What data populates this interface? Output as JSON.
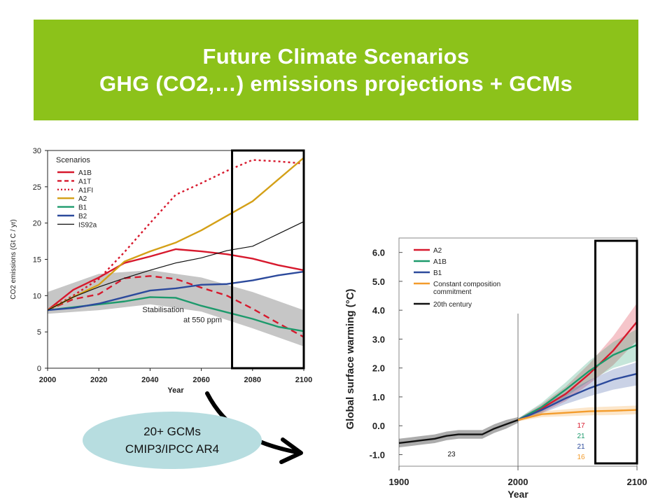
{
  "slide": {
    "title_line1": "Future Climate Scenarios",
    "title_line2": "GHG (CO2,…) emissions projections + GCMs",
    "caption_line1": "20+ GCMs",
    "caption_line2": "CMIP3/IPCC AR4"
  },
  "colors": {
    "banner": "#8cc21a",
    "caption_bg": "#b7dde0",
    "A1B": "#d7192d",
    "A1T": "#d7192d",
    "A1FI": "#d7192d",
    "A2": "#d4a017",
    "B1": "#1d9a6c",
    "B2": "#2c4a9c",
    "IS92a": "#111111",
    "band": "#c6c6c6",
    "const": "#f39c2c",
    "c20": "#111111"
  },
  "chart_data": [
    {
      "type": "line",
      "title": "",
      "ylabel": "CO2 emissions (Gt C / yr)",
      "xlabel": "Year",
      "xlim": [
        2000,
        2100
      ],
      "ylim": [
        0,
        30
      ],
      "xticks": [
        "2000",
        "2020",
        "2040",
        "2060",
        "2080",
        "2100"
      ],
      "yticks": [
        "0",
        "5",
        "10",
        "15",
        "20",
        "25",
        "30"
      ],
      "legend_title": "Scenarios",
      "legend_position": "top-left",
      "band_label_line1": "Stabilisation",
      "band_label_line2": "at 550 ppm",
      "highlight_box": [
        2072,
        2100
      ],
      "band": {
        "x": [
          2000,
          2020,
          2040,
          2060,
          2080,
          2100
        ],
        "lower": [
          7.5,
          8.0,
          8.8,
          7.8,
          5.5,
          3.0
        ],
        "upper": [
          10.5,
          13.0,
          13.5,
          12.5,
          10.5,
          8.0
        ]
      },
      "series": [
        {
          "name": "A1B",
          "style": "solid",
          "x": [
            2000,
            2010,
            2020,
            2030,
            2040,
            2050,
            2060,
            2070,
            2080,
            2090,
            2100
          ],
          "values": [
            8.0,
            10.8,
            12.5,
            14.5,
            15.4,
            16.4,
            16.1,
            15.7,
            15.1,
            14.2,
            13.5
          ]
        },
        {
          "name": "A1T",
          "style": "dashed",
          "x": [
            2000,
            2010,
            2020,
            2030,
            2040,
            2050,
            2060,
            2070,
            2080,
            2090,
            2100
          ],
          "values": [
            8.0,
            9.5,
            10.2,
            12.4,
            12.7,
            12.3,
            11.1,
            10.0,
            8.2,
            6.2,
            4.3
          ]
        },
        {
          "name": "A1FI",
          "style": "dotted",
          "x": [
            2000,
            2010,
            2020,
            2030,
            2040,
            2050,
            2060,
            2070,
            2080,
            2090,
            2100
          ],
          "values": [
            8.0,
            10.0,
            12.3,
            16.0,
            20.0,
            23.9,
            25.5,
            27.2,
            28.7,
            28.5,
            28.2
          ]
        },
        {
          "name": "A2",
          "style": "solid",
          "x": [
            2000,
            2010,
            2020,
            2030,
            2040,
            2050,
            2060,
            2070,
            2080,
            2090,
            2100
          ],
          "values": [
            8.0,
            9.8,
            11.5,
            14.7,
            16.1,
            17.3,
            19.0,
            21.0,
            23.0,
            26.0,
            29.0
          ]
        },
        {
          "name": "B1",
          "style": "solid",
          "x": [
            2000,
            2010,
            2020,
            2030,
            2040,
            2050,
            2060,
            2070,
            2080,
            2090,
            2100
          ],
          "values": [
            8.0,
            8.4,
            8.8,
            9.2,
            9.8,
            9.7,
            8.6,
            7.7,
            6.8,
            5.7,
            5.1
          ]
        },
        {
          "name": "B2",
          "style": "solid",
          "x": [
            2000,
            2010,
            2020,
            2030,
            2040,
            2050,
            2060,
            2070,
            2080,
            2090,
            2100
          ],
          "values": [
            8.0,
            8.3,
            8.9,
            9.8,
            10.7,
            11.0,
            11.5,
            11.6,
            12.1,
            12.8,
            13.3
          ]
        },
        {
          "name": "IS92a",
          "style": "thin",
          "x": [
            2000,
            2010,
            2020,
            2030,
            2040,
            2050,
            2060,
            2070,
            2080,
            2090,
            2100
          ],
          "values": [
            8.0,
            9.8,
            11.2,
            12.4,
            13.5,
            14.5,
            15.2,
            16.2,
            16.8,
            18.5,
            20.2
          ]
        }
      ]
    },
    {
      "type": "line",
      "title": "",
      "ylabel": "Global surface warming (°C)",
      "xlabel": "Year",
      "xlim": [
        1900,
        2100
      ],
      "ylim": [
        -1.0,
        6.0
      ],
      "xticks": [
        "1900",
        "2000",
        "2100"
      ],
      "yticks": [
        "6.0",
        "5.0",
        "4.0",
        "3.0",
        "2.0",
        "1.0",
        "0.0",
        "-1.0"
      ],
      "legend_position": "top-left",
      "highlight_box": [
        2065,
        2100
      ],
      "divider_year": 2000,
      "model_counts": [
        {
          "label": "23",
          "series": "20th century"
        },
        {
          "label": "17",
          "series": "A2"
        },
        {
          "label": "21",
          "series": "A1B"
        },
        {
          "label": "21",
          "series": "B1"
        },
        {
          "label": "16",
          "series": "Constant composition commitment"
        }
      ],
      "series": [
        {
          "name": "A2",
          "x": [
            2000,
            2020,
            2040,
            2060,
            2080,
            2100
          ],
          "values": [
            0.2,
            0.6,
            1.1,
            1.8,
            2.6,
            3.6
          ],
          "spread": [
            0.05,
            0.15,
            0.25,
            0.35,
            0.5,
            0.65
          ]
        },
        {
          "name": "A1B",
          "x": [
            2000,
            2020,
            2040,
            2060,
            2080,
            2100
          ],
          "values": [
            0.2,
            0.65,
            1.25,
            1.9,
            2.45,
            2.8
          ],
          "spread": [
            0.05,
            0.15,
            0.25,
            0.35,
            0.45,
            0.55
          ]
        },
        {
          "name": "B1",
          "x": [
            2000,
            2020,
            2040,
            2060,
            2080,
            2100
          ],
          "values": [
            0.2,
            0.55,
            0.95,
            1.3,
            1.6,
            1.8
          ],
          "spread": [
            0.05,
            0.12,
            0.2,
            0.28,
            0.35,
            0.4
          ]
        },
        {
          "name": "Constant composition commitment",
          "x": [
            2000,
            2020,
            2040,
            2060,
            2080,
            2100
          ],
          "values": [
            0.2,
            0.4,
            0.45,
            0.5,
            0.52,
            0.55
          ],
          "spread": [
            0.05,
            0.1,
            0.12,
            0.14,
            0.15,
            0.15
          ]
        },
        {
          "name": "20th century",
          "x": [
            1900,
            1910,
            1920,
            1930,
            1940,
            1950,
            1960,
            1970,
            1980,
            1990,
            2000
          ],
          "values": [
            -0.6,
            -0.55,
            -0.5,
            -0.45,
            -0.35,
            -0.3,
            -0.3,
            -0.3,
            -0.1,
            0.05,
            0.2
          ],
          "spread": [
            0.15,
            0.15,
            0.15,
            0.15,
            0.15,
            0.15,
            0.15,
            0.15,
            0.15,
            0.15,
            0.1
          ]
        }
      ]
    }
  ]
}
